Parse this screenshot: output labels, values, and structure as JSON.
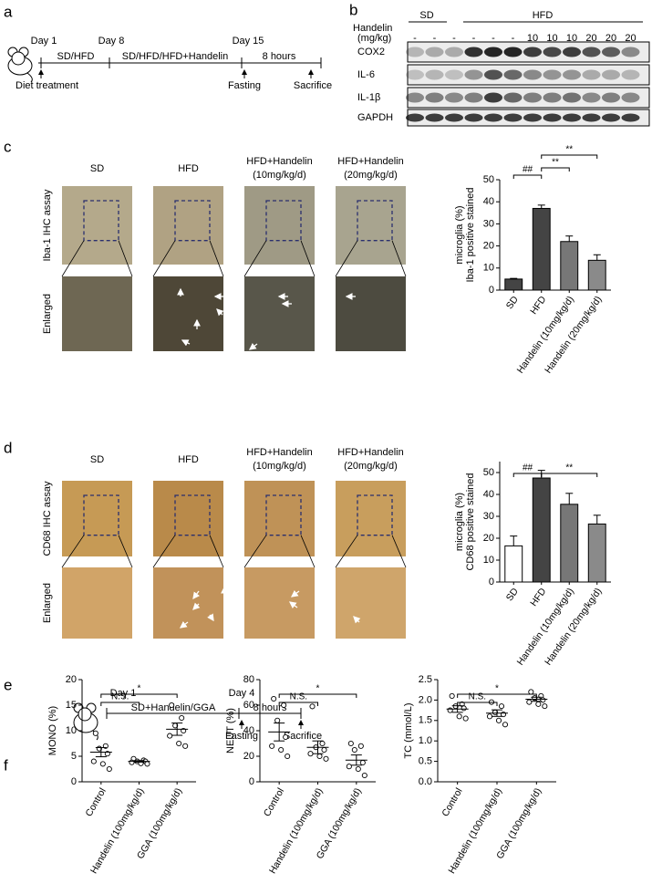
{
  "panel_labels": [
    "a",
    "b",
    "c",
    "d",
    "e",
    "f"
  ],
  "timeline_a": {
    "days": [
      "Day 1",
      "Day 8",
      "Day 15"
    ],
    "periods": [
      "SD/HFD",
      "SD/HFD/HFD+Handelin",
      "8 hours"
    ],
    "events": [
      "Diet treatment",
      "Fasting",
      "Sacrifice"
    ]
  },
  "western_blot_b": {
    "groups": [
      "SD",
      "HFD"
    ],
    "dose_label": [
      "Handelin",
      "(mg/kg)"
    ],
    "doses": [
      "-",
      "-",
      "-",
      "-",
      "-",
      "-",
      "10",
      "10",
      "10",
      "20",
      "20",
      "20"
    ],
    "rows": [
      "COX2",
      "IL-6",
      "IL-1β",
      "GAPDH"
    ]
  },
  "ihc_c": {
    "columns": [
      [
        "SD"
      ],
      [
        "HFD"
      ],
      [
        "HFD+Handelin",
        "(10mg/kg/d)"
      ],
      [
        "HFD+Handelin",
        "(20mg/kg/d)"
      ]
    ],
    "rows": [
      "Iba-1 IHC assay",
      "Enlarged"
    ]
  },
  "ihc_d": {
    "columns": [
      [
        "SD"
      ],
      [
        "HFD"
      ],
      [
        "HFD+Handelin",
        "(10mg/kg/d)"
      ],
      [
        "HFD+Handelin",
        "(20mg/kg/d)"
      ]
    ],
    "rows": [
      "CD68 IHC assay",
      "Enlarged"
    ]
  },
  "timeline_e": {
    "days": [
      "Day 1",
      "Day 4"
    ],
    "periods": [
      "SD+Handelin/GGA",
      "8 hours"
    ],
    "events": [
      "Fasting",
      "Sacrifice"
    ]
  },
  "chart_data": [
    {
      "type": "bar",
      "ylabel": [
        "Iba-1 positive stained",
        "microglia (%)"
      ],
      "categories": [
        "SD",
        "HFD",
        "Handelin (10mg/kg/d)",
        "Handelin (20mg/kg/d)"
      ],
      "values": [
        5,
        37,
        22,
        13.5
      ],
      "errors": [
        0.3,
        1.5,
        2.5,
        2.5
      ],
      "colors": [
        "#444444",
        "#444444",
        "#777777",
        "#8a8a8a"
      ],
      "ylim": [
        0,
        50
      ],
      "yticks": [
        0,
        10,
        20,
        30,
        40,
        50
      ],
      "annotations": [
        "##",
        "**",
        "**"
      ]
    },
    {
      "type": "bar",
      "ylabel": [
        "CD68 positive stained",
        "microglia (%)"
      ],
      "categories": [
        "SD",
        "HFD",
        "Handelin (10mg/kg/d)",
        "Handelin (20mg/kg/d)"
      ],
      "values": [
        16.5,
        47.5,
        35.5,
        26.5
      ],
      "errors": [
        4.5,
        3.5,
        5,
        4
      ],
      "colors": [
        "#ffffff",
        "#444444",
        "#777777",
        "#8a8a8a"
      ],
      "ylim": [
        0,
        55
      ],
      "yticks": [
        0,
        10,
        20,
        30,
        40,
        50
      ],
      "annotations": [
        "##",
        "**"
      ]
    },
    {
      "type": "dotplot",
      "ylabel": [
        "MONO (%)"
      ],
      "categories": [
        "Control",
        "Handelin (100mg/kg/d)",
        "GGA (100mg/kg/d)"
      ],
      "points": [
        [
          9.5,
          7,
          6.5,
          5.5,
          4,
          3.5,
          2.5
        ],
        [
          4.5,
          4.2,
          4,
          4,
          3.8,
          3.6,
          3.5
        ],
        [
          15,
          12.5,
          11,
          10,
          9,
          7.5,
          7
        ]
      ],
      "means": [
        5.8,
        4,
        10.3
      ],
      "errors": [
        0.9,
        0.15,
        1.2
      ],
      "ylim": [
        0,
        20
      ],
      "yticks": [
        0,
        5,
        10,
        15,
        20
      ],
      "annotations": [
        "N.S.",
        "*"
      ]
    },
    {
      "type": "dotplot",
      "ylabel": [
        "NEUT (%)"
      ],
      "categories": [
        "Control",
        "Handelin (100mg/kg/d)",
        "GGA (100mg/kg/d)"
      ],
      "points": [
        [
          65,
          60,
          48,
          35,
          28,
          25,
          20
        ],
        [
          59,
          30,
          27,
          25,
          22,
          20,
          18
        ],
        [
          30,
          28,
          25,
          15,
          12,
          10,
          5
        ]
      ],
      "means": [
        39,
        27,
        17
      ],
      "errors": [
        7,
        5,
        4
      ],
      "ylim": [
        0,
        80
      ],
      "yticks": [
        0,
        20,
        40,
        60,
        80
      ],
      "annotations": [
        "N.S.",
        "*"
      ]
    },
    {
      "type": "dotplot",
      "ylabel": [
        "TC (mmol/L)"
      ],
      "categories": [
        "Control",
        "Handelin (100mg/kg/d)",
        "GGA (100mg/kg/d)"
      ],
      "points": [
        [
          2.1,
          1.9,
          1.85,
          1.8,
          1.75,
          1.6,
          1.55
        ],
        [
          1.95,
          1.85,
          1.7,
          1.65,
          1.6,
          1.5,
          1.4
        ],
        [
          2.2,
          2.1,
          2.05,
          2,
          1.95,
          1.9,
          1.85
        ]
      ],
      "means": [
        1.78,
        1.68,
        2.02
      ],
      "errors": [
        0.08,
        0.08,
        0.05
      ],
      "ylim": [
        0,
        2.5
      ],
      "yticks": [
        {
          "value": 0,
          "label": "0.0"
        },
        0.5,
        {
          "value": 1,
          "label": "1.0"
        },
        1.5,
        {
          "value": 2,
          "label": "2.0"
        },
        2.5
      ],
      "annotations": [
        "N.S.",
        "*"
      ]
    }
  ]
}
